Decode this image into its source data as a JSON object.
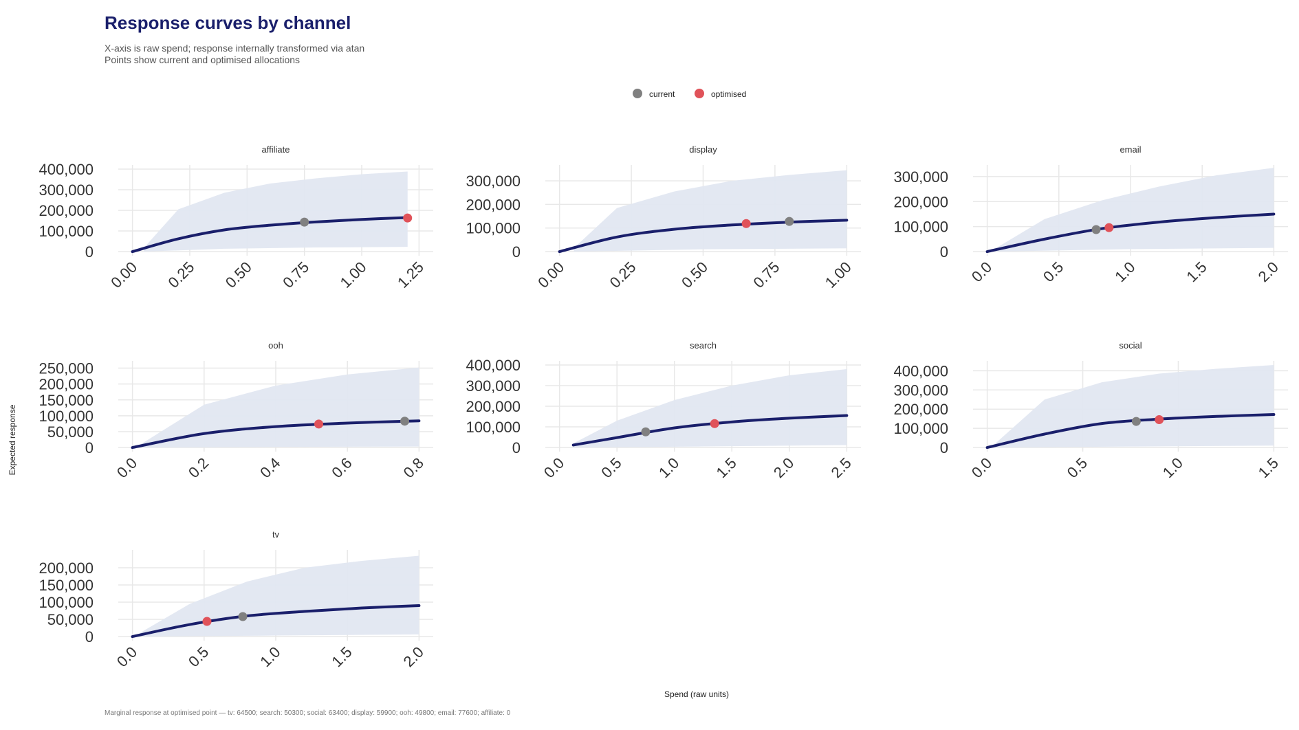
{
  "title": "Response curves by channel",
  "subtitle_lines": [
    "X-axis is raw spend; response internally transformed via atan",
    "Points show current and optimised allocations"
  ],
  "legend": [
    {
      "label": "current",
      "color": "#808080"
    },
    {
      "label": "optimised",
      "color": "#e05259"
    }
  ],
  "colors": {
    "curve": "#1a1f6b",
    "band": "#e1e7f1",
    "grid": "#e8e8e8"
  },
  "ylabel": "Expected response",
  "xlabel": "Spend (raw units)",
  "caption": "Marginal response at optimised point — tv: 64500;  search: 50300;  social: 63400;  display: 59900;  ooh: 49800;  email: 77600;  affiliate: 0",
  "chart_data": [
    {
      "type": "line",
      "title": "affiliate",
      "xlim": [
        0,
        1.25
      ],
      "ylim": [
        0,
        400000
      ],
      "x_ticks": [
        "0.00",
        "0.25",
        "0.50",
        "0.75",
        "1.00",
        "1.25"
      ],
      "y_ticks": [
        "0",
        "100,000",
        "200,000",
        "300,000",
        "400,000"
      ],
      "series": [
        {
          "name": "curve",
          "x": [
            0,
            0.2,
            0.4,
            0.6,
            0.8,
            1.0,
            1.2
          ],
          "y": [
            0,
            62000,
            105000,
            128000,
            144000,
            156000,
            165000
          ]
        },
        {
          "name": "band upper",
          "x": [
            0.05,
            0.2,
            0.4,
            0.6,
            0.8,
            1.0,
            1.2
          ],
          "y": [
            18000,
            205000,
            285000,
            330000,
            355000,
            375000,
            388000
          ]
        },
        {
          "name": "band lower",
          "x": [
            0.05,
            0.4,
            0.8,
            1.2
          ],
          "y": [
            0,
            14000,
            20000,
            23000
          ]
        }
      ],
      "points": [
        {
          "series": "current",
          "x": 0.75,
          "y": 143000
        },
        {
          "series": "optimised",
          "x": 1.2,
          "y": 163000
        }
      ]
    },
    {
      "type": "line",
      "title": "display",
      "xlim": [
        0,
        1
      ],
      "ylim": [
        0,
        350000
      ],
      "x_ticks": [
        "0.00",
        "0.25",
        "0.50",
        "0.75",
        "1.00"
      ],
      "y_ticks": [
        "0",
        "100,000",
        "200,000",
        "300,000"
      ],
      "series": [
        {
          "name": "curve",
          "x": [
            0,
            0.2,
            0.4,
            0.6,
            0.8,
            1.0
          ],
          "y": [
            0,
            62000,
            95000,
            113000,
            125000,
            133000
          ]
        },
        {
          "name": "band upper",
          "x": [
            0.05,
            0.2,
            0.4,
            0.6,
            0.8,
            1.0
          ],
          "y": [
            15000,
            185000,
            255000,
            300000,
            325000,
            345000
          ]
        },
        {
          "name": "band lower",
          "x": [
            0.05,
            0.5,
            1.0
          ],
          "y": [
            0,
            10000,
            14000
          ]
        }
      ],
      "points": [
        {
          "series": "current",
          "x": 0.8,
          "y": 128000
        },
        {
          "series": "optimised",
          "x": 0.65,
          "y": 119000
        }
      ]
    },
    {
      "type": "line",
      "title": "email",
      "xlim": [
        0,
        2
      ],
      "ylim": [
        0,
        330000
      ],
      "x_ticks": [
        "0.0",
        "0.5",
        "1.0",
        "1.5",
        "2.0"
      ],
      "y_ticks": [
        "0",
        "100,000",
        "200,000",
        "300,000"
      ],
      "series": [
        {
          "name": "curve",
          "x": [
            0,
            0.4,
            0.8,
            1.2,
            1.6,
            2.0
          ],
          "y": [
            0,
            50000,
            92000,
            118000,
            136000,
            150000
          ]
        },
        {
          "name": "band upper",
          "x": [
            0.05,
            0.4,
            0.8,
            1.2,
            1.6,
            2.0
          ],
          "y": [
            10000,
            130000,
            205000,
            260000,
            305000,
            335000
          ]
        },
        {
          "name": "band lower",
          "x": [
            0.05,
            1.0,
            2.0
          ],
          "y": [
            0,
            10000,
            15000
          ]
        }
      ],
      "points": [
        {
          "series": "current",
          "x": 0.76,
          "y": 88000
        },
        {
          "series": "optimised",
          "x": 0.85,
          "y": 96000
        }
      ]
    },
    {
      "type": "line",
      "title": "ooh",
      "xlim": [
        0,
        0.8
      ],
      "ylim": [
        0,
        260000
      ],
      "x_ticks": [
        "0.0",
        "0.2",
        "0.4",
        "0.6",
        "0.8"
      ],
      "y_ticks": [
        "0",
        "50,000",
        "100,000",
        "150,000",
        "200,000",
        "250,000"
      ],
      "series": [
        {
          "name": "curve",
          "x": [
            0,
            0.2,
            0.4,
            0.6,
            0.8
          ],
          "y": [
            0,
            44000,
            66000,
            77000,
            84000
          ]
        },
        {
          "name": "band upper",
          "x": [
            0.02,
            0.2,
            0.4,
            0.6,
            0.8
          ],
          "y": [
            8000,
            135000,
            195000,
            230000,
            252000
          ]
        },
        {
          "name": "band lower",
          "x": [
            0.02,
            0.4,
            0.8
          ],
          "y": [
            0,
            2000,
            3000
          ]
        }
      ],
      "points": [
        {
          "series": "current",
          "x": 0.76,
          "y": 83000
        },
        {
          "series": "optimised",
          "x": 0.52,
          "y": 74000
        }
      ]
    },
    {
      "type": "line",
      "title": "search",
      "xlim": [
        0,
        2.5
      ],
      "ylim": [
        0,
        400000
      ],
      "x_ticks": [
        "0.0",
        "0.5",
        "1.0",
        "1.5",
        "2.0",
        "2.5"
      ],
      "y_ticks": [
        "0",
        "100,000",
        "200,000",
        "300,000",
        "400,000"
      ],
      "series": [
        {
          "name": "curve",
          "x": [
            0.12,
            0.5,
            1.0,
            1.5,
            2.0,
            2.5
          ],
          "y": [
            12000,
            48000,
            95000,
            124000,
            142000,
            155000
          ]
        },
        {
          "name": "band upper",
          "x": [
            0.12,
            0.5,
            1.0,
            1.5,
            2.0,
            2.5
          ],
          "y": [
            20000,
            130000,
            230000,
            300000,
            350000,
            380000
          ]
        },
        {
          "name": "band lower",
          "x": [
            0.12,
            1.25,
            2.5
          ],
          "y": [
            0,
            5000,
            12000
          ]
        }
      ],
      "points": [
        {
          "series": "current",
          "x": 0.75,
          "y": 76000
        },
        {
          "series": "optimised",
          "x": 1.35,
          "y": 116000
        }
      ]
    },
    {
      "type": "line",
      "title": "social",
      "xlim": [
        0,
        1.5
      ],
      "ylim": [
        0,
        430000
      ],
      "x_ticks": [
        "0.0",
        "0.5",
        "1.0",
        "1.5"
      ],
      "y_ticks": [
        "0",
        "100,000",
        "200,000",
        "300,000",
        "400,000"
      ],
      "series": [
        {
          "name": "curve",
          "x": [
            0,
            0.3,
            0.6,
            0.9,
            1.2,
            1.5
          ],
          "y": [
            0,
            70000,
            125000,
            148000,
            162000,
            172000
          ]
        },
        {
          "name": "band upper",
          "x": [
            0.03,
            0.3,
            0.6,
            0.9,
            1.2,
            1.5
          ],
          "y": [
            10000,
            250000,
            340000,
            385000,
            410000,
            430000
          ]
        },
        {
          "name": "band lower",
          "x": [
            0.03,
            0.75,
            1.5
          ],
          "y": [
            0,
            5000,
            10000
          ]
        }
      ],
      "points": [
        {
          "series": "current",
          "x": 0.78,
          "y": 136000
        },
        {
          "series": "optimised",
          "x": 0.9,
          "y": 145000
        }
      ]
    },
    {
      "type": "line",
      "title": "tv",
      "xlim": [
        0,
        2
      ],
      "ylim": [
        0,
        240000
      ],
      "x_ticks": [
        "0.0",
        "0.5",
        "1.0",
        "1.5",
        "2.0"
      ],
      "y_ticks": [
        "0",
        "50,000",
        "100,000",
        "150,000",
        "200,000"
      ],
      "series": [
        {
          "name": "curve",
          "x": [
            0,
            0.4,
            0.8,
            1.2,
            1.6,
            2.0
          ],
          "y": [
            0,
            35000,
            60000,
            73000,
            83000,
            90000
          ]
        },
        {
          "name": "band upper",
          "x": [
            0.05,
            0.4,
            0.8,
            1.2,
            1.6,
            2.0
          ],
          "y": [
            10000,
            95000,
            160000,
            200000,
            220000,
            235000
          ]
        },
        {
          "name": "band lower",
          "x": [
            0.05,
            1.0,
            2.0
          ],
          "y": [
            0,
            3000,
            6000
          ]
        }
      ],
      "points": [
        {
          "series": "current",
          "x": 0.77,
          "y": 58000
        },
        {
          "series": "optimised",
          "x": 0.52,
          "y": 44000
        }
      ]
    }
  ]
}
